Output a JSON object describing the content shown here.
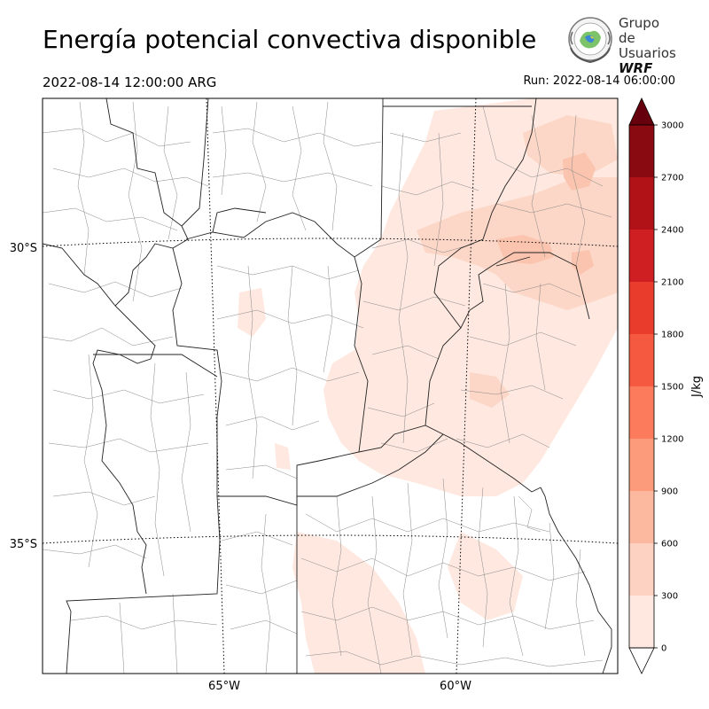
{
  "title": "Energía potencial convectiva disponible",
  "valid_time": "2022-08-14 12:00:00 ARG",
  "run_time": "Run: 2022-08-14 06:00:00",
  "logo": {
    "line1": "Grupo de",
    "line2": "Usuarios",
    "line3": "WRF"
  },
  "axes": {
    "lat_labels": [
      "30°S",
      "35°S"
    ],
    "lon_labels": [
      "65°W",
      "60°W"
    ]
  },
  "colorbar": {
    "label": "J/kg",
    "levels": [
      0,
      300,
      600,
      900,
      1200,
      1500,
      1800,
      2100,
      2400,
      2700,
      3000
    ],
    "colors": [
      "#fee8df",
      "#fdd2c2",
      "#fcb9a0",
      "#fc9a7c",
      "#fb7b5c",
      "#f55a40",
      "#e93c2d",
      "#cf1f22",
      "#b01217",
      "#8a0a12",
      "#6b000d"
    ],
    "extend": "both",
    "extend_low_color": "#ffffff",
    "extend_high_color": "#67000d"
  },
  "map_colors": {
    "level0": "#fee8df",
    "level1": "#fcd6c6",
    "level2": "#fbc4ae"
  }
}
